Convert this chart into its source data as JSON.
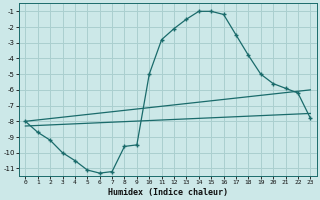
{
  "xlabel": "Humidex (Indice chaleur)",
  "bg_color": "#cce8e8",
  "grid_color": "#aacfcf",
  "line_color": "#1a6b6b",
  "xlim": [
    -0.5,
    23.5
  ],
  "ylim": [
    -11.5,
    -0.5
  ],
  "xticks": [
    0,
    1,
    2,
    3,
    4,
    5,
    6,
    7,
    8,
    9,
    10,
    11,
    12,
    13,
    14,
    15,
    16,
    17,
    18,
    19,
    20,
    21,
    22,
    23
  ],
  "yticks": [
    -1,
    -2,
    -3,
    -4,
    -5,
    -6,
    -7,
    -8,
    -9,
    -10,
    -11
  ],
  "curve1_x": [
    0,
    1,
    2,
    3,
    4,
    5,
    6,
    7,
    8,
    9,
    10,
    11,
    12,
    13,
    14,
    15,
    16,
    17,
    18,
    19,
    20,
    21,
    22,
    23
  ],
  "curve1_y": [
    -8.0,
    -8.7,
    -9.2,
    -10.0,
    -10.5,
    -11.1,
    -11.3,
    -11.2,
    -9.6,
    -9.5,
    -5.0,
    -2.8,
    -2.1,
    -1.5,
    -1.0,
    -1.0,
    -1.2,
    -2.5,
    -3.8,
    -5.0,
    -5.6,
    -5.9,
    -6.2,
    -7.8
  ],
  "line2_x": [
    0,
    23
  ],
  "line2_y": [
    -8.0,
    -6.0
  ],
  "line3_x": [
    0,
    23
  ],
  "line3_y": [
    -8.3,
    -7.5
  ]
}
